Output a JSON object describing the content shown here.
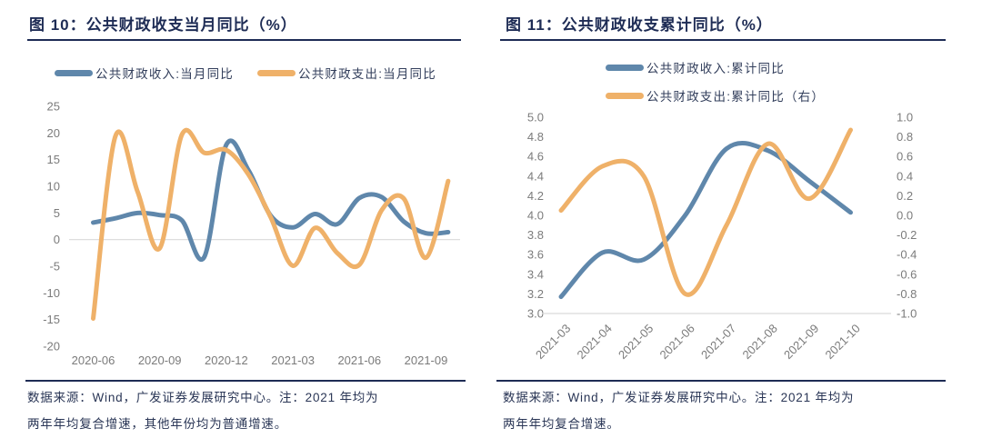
{
  "colors": {
    "navy": "#1e2c55",
    "blue": "#5f87ab",
    "orange": "#efb169",
    "axis_gray": "#7b7b7b",
    "grid_gray": "#d9d9d9",
    "legend_text": "#333f5c",
    "source_text": "#2a3656"
  },
  "sources": [
    {
      "lines": [
        "数据来源：Wind，广发证券发展研究中心。注：2021 年均为",
        "两年年均复合增速，其他年份均为普通增速。"
      ]
    },
    {
      "lines": [
        "数据来源：Wind，广发证券发展研究中心。注：2021 年均为",
        "两年年均复合增速。"
      ]
    }
  ],
  "chart_data": [
    {
      "type": "line",
      "title": "图 10：公共财政收支当月同比（%）",
      "categories": [
        "2020-06",
        "2020-07",
        "2020-08",
        "2020-09",
        "2020-10",
        "2020-11",
        "2020-12",
        "2021-01",
        "2021-02",
        "2021-03",
        "2021-04",
        "2021-05",
        "2021-06",
        "2021-07",
        "2021-08",
        "2021-09",
        "2021-10"
      ],
      "x_tick_labels": [
        "2020-06",
        "2020-09",
        "2020-12",
        "2021-03",
        "2021-06",
        "2021-09"
      ],
      "ylim": [
        -20,
        25
      ],
      "ytick_labels": [
        "25",
        "20",
        "15",
        "10",
        "5",
        "0",
        "-5",
        "-10",
        "-15",
        "-20"
      ],
      "grid_values": [
        0
      ],
      "legend_position": "top-center",
      "series": [
        {
          "name": "公共财政收入:当月同比",
          "color": "blue",
          "values": [
            3.2,
            4.0,
            5.0,
            4.6,
            3.6,
            -3.3,
            17.8,
            13.0,
            4.5,
            2.3,
            4.8,
            2.9,
            7.8,
            8.0,
            3.4,
            1.2,
            1.4
          ]
        },
        {
          "name": "公共财政支出:当月同比",
          "color": "orange",
          "values": [
            -14.8,
            19.4,
            9.0,
            -1.6,
            19.7,
            16.3,
            16.8,
            12.2,
            4.2,
            -4.9,
            2.2,
            -2.5,
            -4.7,
            5.5,
            7.7,
            -3.4,
            11.0
          ]
        }
      ]
    },
    {
      "type": "line",
      "title": "图 11：公共财政收支累计同比（%）",
      "categories": [
        "2021-03",
        "2021-04",
        "2021-05",
        "2021-06",
        "2021-07",
        "2021-08",
        "2021-09",
        "2021-10"
      ],
      "y_left": {
        "lim": [
          3.0,
          5.0
        ],
        "tick_labels": [
          "5.0",
          "4.8",
          "4.6",
          "4.4",
          "4.2",
          "4.0",
          "3.8",
          "3.6",
          "3.4",
          "3.2",
          "3.0"
        ]
      },
      "y_right": {
        "lim": [
          -1.0,
          1.0
        ],
        "tick_labels": [
          "1.0",
          "0.8",
          "0.6",
          "0.4",
          "0.2",
          "0.0",
          "-0.2",
          "-0.4",
          "-0.6",
          "-0.8",
          "-1.0"
        ]
      },
      "grid_values_left": [
        3.0
      ],
      "legend_position": "top-left-stacked",
      "series": [
        {
          "name": "公共财政收入:累计同比",
          "axis": "left",
          "color": "blue",
          "values": [
            3.17,
            3.62,
            3.55,
            4.0,
            4.68,
            4.66,
            4.35,
            4.03
          ]
        },
        {
          "name": "公共财政支出:累计同比（右）",
          "axis": "right",
          "color": "orange",
          "values": [
            0.05,
            0.5,
            0.4,
            -0.8,
            -0.1,
            0.73,
            0.17,
            0.87
          ]
        }
      ]
    }
  ]
}
